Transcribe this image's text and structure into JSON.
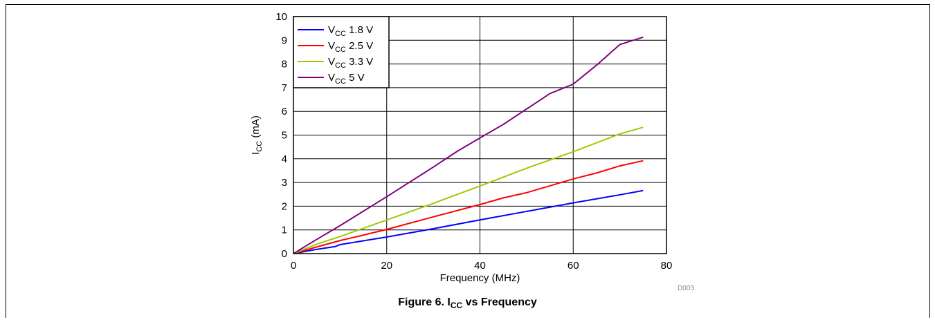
{
  "figure": {
    "caption_prefix": "Figure 6. I",
    "caption_sub": "CC",
    "caption_suffix": " vs Frequency",
    "code": "D003"
  },
  "chart_data": {
    "type": "line",
    "xlabel": "Frequency (MHz)",
    "ylabel_main": "I",
    "ylabel_sub": "CC",
    "ylabel_unit": " (mA)",
    "xlim": [
      0,
      80
    ],
    "ylim": [
      0,
      10
    ],
    "xticks": [
      0,
      20,
      40,
      60,
      80
    ],
    "yticks": [
      0,
      1,
      2,
      3,
      4,
      5,
      6,
      7,
      8,
      9,
      10
    ],
    "grid": true,
    "legend_position": "top-left",
    "series": [
      {
        "name": "V",
        "name_sub": "CC",
        "name_suffix": " 1.8 V",
        "color": "#0000ff",
        "x": [
          0,
          5,
          9,
          10,
          20,
          30,
          40,
          50,
          60,
          70,
          75
        ],
        "y": [
          0,
          0.18,
          0.3,
          0.38,
          0.7,
          1.05,
          1.42,
          1.78,
          2.14,
          2.48,
          2.66
        ]
      },
      {
        "name": "V",
        "name_sub": "CC",
        "name_suffix": " 2.5 V",
        "color": "#ff0000",
        "x": [
          0,
          5,
          10,
          15,
          20,
          30,
          40,
          45,
          50,
          55,
          60,
          65,
          70,
          75
        ],
        "y": [
          0,
          0.28,
          0.55,
          0.78,
          1.02,
          1.55,
          2.07,
          2.35,
          2.57,
          2.86,
          3.15,
          3.4,
          3.7,
          3.92
        ]
      },
      {
        "name": "V",
        "name_sub": "CC",
        "name_suffix": " 3.3 V",
        "color": "#99cc00",
        "x": [
          0,
          5,
          10,
          20,
          30,
          40,
          50,
          60,
          70,
          75
        ],
        "y": [
          0,
          0.4,
          0.72,
          1.42,
          2.12,
          2.85,
          3.6,
          4.3,
          5.05,
          5.33
        ]
      },
      {
        "name": "V",
        "name_sub": "CC",
        "name_suffix": " 5 V",
        "color": "#800080",
        "x": [
          0,
          5,
          10,
          20,
          30,
          35,
          40,
          45,
          50,
          55,
          60,
          65,
          70,
          75
        ],
        "y": [
          0,
          0.6,
          1.18,
          2.4,
          3.65,
          4.3,
          4.88,
          5.45,
          6.1,
          6.75,
          7.15,
          7.95,
          8.82,
          9.13
        ]
      }
    ]
  }
}
